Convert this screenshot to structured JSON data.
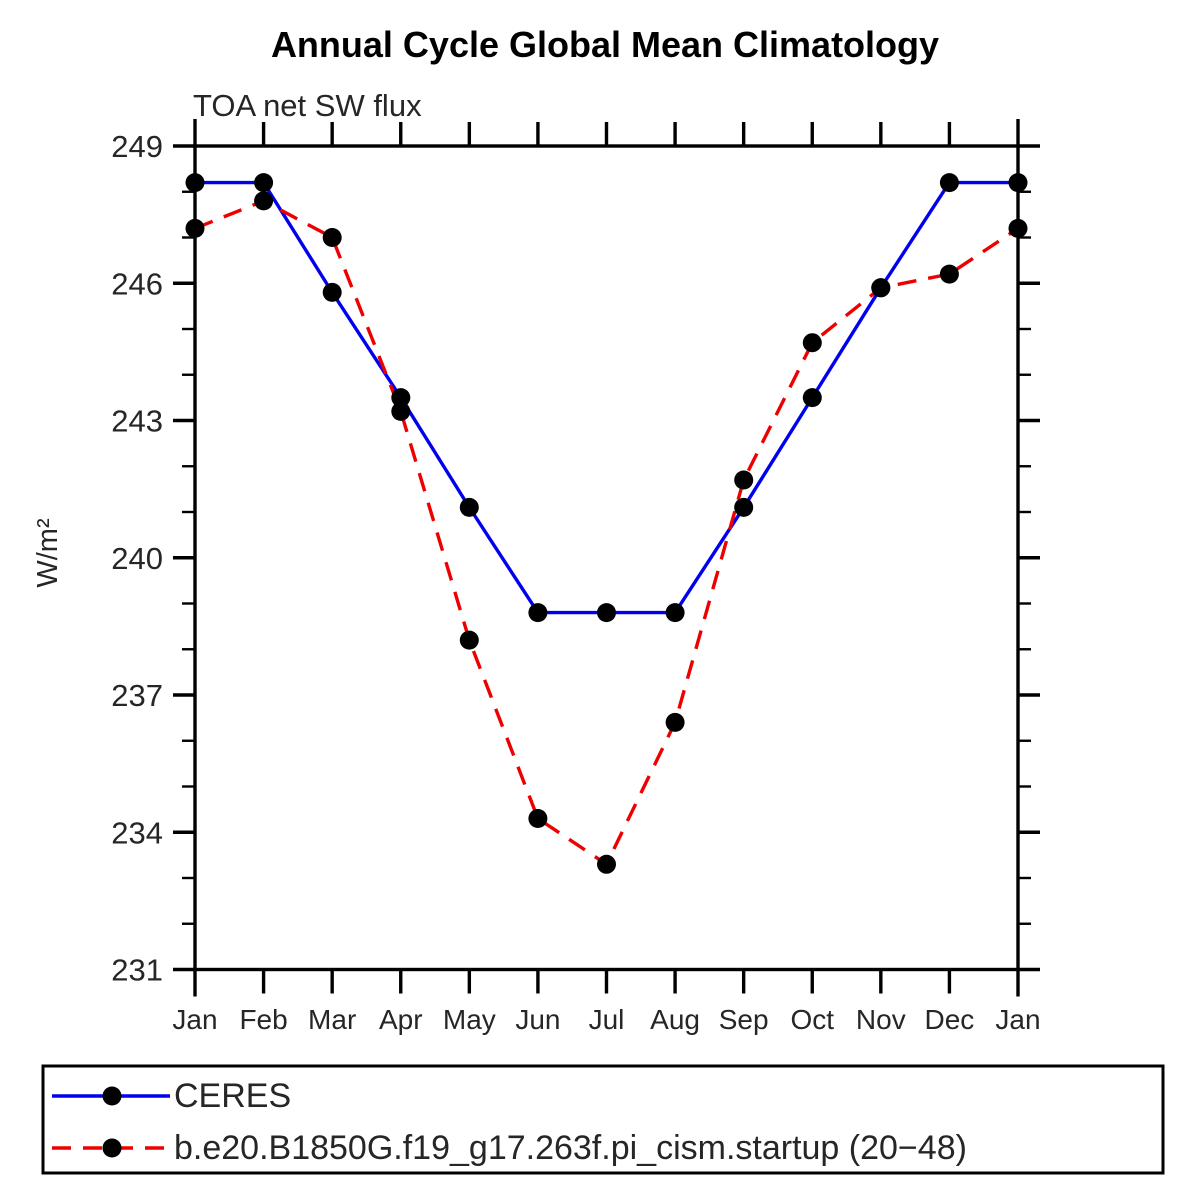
{
  "chart_data": {
    "type": "line",
    "title": "Annual Cycle Global Mean Climatology",
    "subtitle": "TOA net SW flux",
    "ylabel": "W/m²",
    "xlabel": "",
    "categories": [
      "Jan",
      "Feb",
      "Mar",
      "Apr",
      "May",
      "Jun",
      "Jul",
      "Aug",
      "Sep",
      "Oct",
      "Nov",
      "Dec",
      "Jan"
    ],
    "ylim": [
      231,
      249
    ],
    "yticks": [
      249,
      246,
      243,
      240,
      237,
      234,
      231
    ],
    "y_minor_tick_interval": 1,
    "grid": false,
    "legend_position": "bottom",
    "marker": "filled-circle",
    "marker_color": "#000000",
    "series": [
      {
        "name": "CERES",
        "color": "#0000ee",
        "line_style": "solid",
        "values": [
          248.2,
          248.2,
          245.8,
          243.5,
          241.1,
          238.8,
          238.8,
          238.8,
          241.1,
          243.5,
          245.9,
          248.2,
          248.2
        ]
      },
      {
        "name": "b.e20.B1850G.f19_g17.263f.pi_cism.startup (20−48)",
        "color": "#ee0000",
        "line_style": "dashed",
        "values": [
          247.2,
          247.8,
          247.0,
          243.2,
          238.2,
          234.3,
          233.3,
          236.4,
          241.7,
          244.7,
          245.9,
          246.2,
          247.2
        ]
      }
    ]
  },
  "legend": {
    "items": [
      {
        "label": "CERES"
      },
      {
        "label": "b.e20.B1850G.f19_g17.263f.pi_cism.startup (20−48)"
      }
    ]
  }
}
